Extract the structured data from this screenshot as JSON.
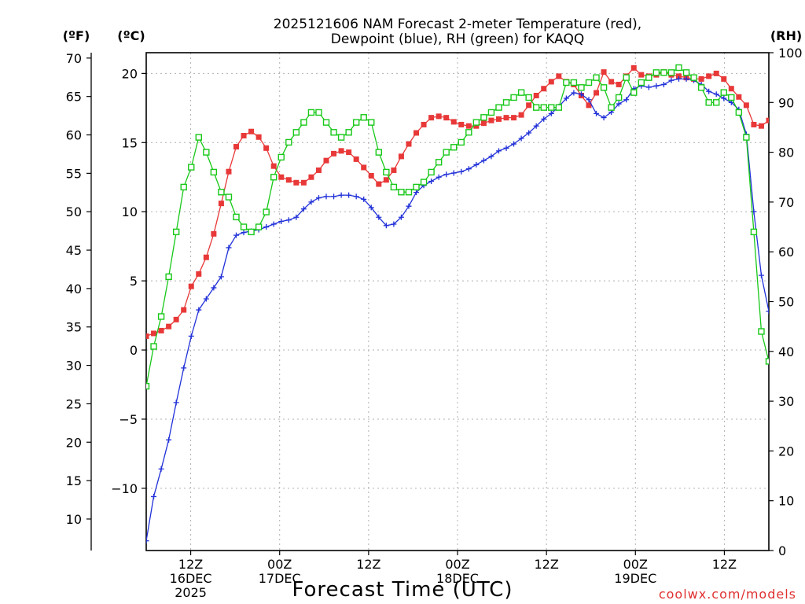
{
  "chart_data": {
    "type": "line",
    "title_lines": [
      "2025121606 NAM Forecast 2-meter Temperature (red),",
      "Dewpoint (blue), RH (green) for KAQQ"
    ],
    "xlabel": "Forecast Time (UTC)",
    "credit": "coolwx.com/models",
    "x_range": [
      0,
      84
    ],
    "x_ticks": [
      {
        "x": 6,
        "labels": [
          "12Z",
          "16DEC",
          "2025"
        ]
      },
      {
        "x": 18,
        "labels": [
          "00Z",
          "17DEC"
        ]
      },
      {
        "x": 30,
        "labels": [
          "12Z"
        ]
      },
      {
        "x": 42,
        "labels": [
          "00Z",
          "18DEC"
        ]
      },
      {
        "x": 54,
        "labels": [
          "12Z"
        ]
      },
      {
        "x": 66,
        "labels": [
          "00Z",
          "19DEC"
        ]
      },
      {
        "x": 78,
        "labels": [
          "12Z"
        ]
      }
    ],
    "axes": {
      "celsius": {
        "unit_label": "(ºC)",
        "range": [
          -14.5,
          21.5
        ],
        "ticks": [
          -10,
          -5,
          0,
          5,
          10,
          15,
          20
        ]
      },
      "fahrenheit": {
        "unit_label": "(ºF)",
        "ticks": [
          10,
          15,
          20,
          25,
          30,
          35,
          40,
          45,
          50,
          55,
          60,
          65,
          70
        ]
      },
      "rh": {
        "unit_label": "(RH)",
        "range": [
          0,
          100
        ],
        "ticks": [
          0,
          10,
          20,
          30,
          40,
          50,
          60,
          70,
          80,
          90,
          100
        ]
      }
    },
    "grid": true,
    "series": [
      {
        "key": "temperature",
        "axis": "celsius",
        "color": "#e83838",
        "marker": "filled-square",
        "values": [
          1.0,
          1.2,
          1.4,
          1.7,
          2.2,
          2.9,
          4.6,
          5.5,
          6.7,
          8.4,
          10.6,
          12.9,
          14.7,
          15.5,
          15.8,
          15.4,
          14.6,
          13.3,
          12.5,
          12.3,
          12.1,
          12.1,
          12.5,
          13.0,
          13.7,
          14.2,
          14.4,
          14.3,
          13.8,
          13.2,
          12.6,
          12.0,
          12.3,
          13.0,
          14.0,
          14.9,
          15.7,
          16.3,
          16.8,
          16.9,
          16.8,
          16.5,
          16.3,
          16.2,
          16.2,
          16.4,
          16.6,
          16.7,
          16.8,
          16.8,
          17.0,
          17.7,
          18.4,
          18.9,
          19.4,
          19.8,
          19.4,
          19.2,
          18.4,
          17.7,
          18.6,
          20.1,
          19.4,
          19.2,
          19.8,
          20.4,
          19.9,
          19.8,
          19.9,
          20.1,
          19.9,
          19.8,
          19.7,
          19.6,
          19.6,
          19.8,
          20.0,
          19.6,
          18.9,
          18.3,
          17.7,
          16.3,
          16.2,
          16.6
        ]
      },
      {
        "key": "dewpoint",
        "axis": "celsius",
        "color": "#2030d8",
        "marker": "plus",
        "values": [
          -13.8,
          -10.6,
          -8.6,
          -6.5,
          -3.8,
          -1.3,
          1.0,
          2.9,
          3.7,
          4.5,
          5.3,
          7.4,
          8.3,
          8.5,
          8.6,
          8.7,
          8.9,
          9.1,
          9.3,
          9.4,
          9.6,
          10.2,
          10.7,
          11.0,
          11.1,
          11.1,
          11.2,
          11.2,
          11.1,
          10.9,
          10.3,
          9.6,
          9.0,
          9.1,
          9.6,
          10.4,
          11.4,
          11.9,
          12.2,
          12.5,
          12.7,
          12.8,
          12.9,
          13.1,
          13.4,
          13.7,
          14.0,
          14.4,
          14.6,
          14.9,
          15.3,
          15.7,
          16.2,
          16.7,
          17.1,
          17.6,
          18.2,
          18.6,
          18.5,
          18.1,
          17.1,
          16.8,
          17.2,
          17.8,
          18.1,
          18.9,
          19.1,
          19.0,
          19.1,
          19.2,
          19.5,
          19.6,
          19.6,
          19.5,
          19.2,
          18.7,
          18.5,
          18.2,
          17.9,
          17.4,
          15.6,
          10.0,
          5.4,
          2.8
        ]
      },
      {
        "key": "rh",
        "axis": "rh",
        "color": "#18c818",
        "marker": "open-square",
        "values": [
          33,
          41,
          47,
          55,
          64,
          73,
          77,
          83,
          80,
          76,
          72,
          71,
          67,
          65,
          64,
          65,
          68,
          75,
          79,
          82,
          84,
          86,
          88,
          88,
          86,
          84,
          83,
          84,
          86,
          87,
          86,
          80,
          76,
          73,
          72,
          72,
          73,
          74,
          76,
          78,
          80,
          81,
          82,
          84,
          86,
          87,
          88,
          89,
          90,
          91,
          92,
          91,
          89,
          89,
          89,
          89,
          94,
          94,
          93,
          94,
          95,
          93,
          89,
          91,
          95,
          92,
          94,
          95,
          96,
          96,
          96,
          97,
          96,
          95,
          93,
          90,
          90,
          92,
          91,
          88,
          83,
          64,
          44,
          38
        ]
      }
    ]
  }
}
